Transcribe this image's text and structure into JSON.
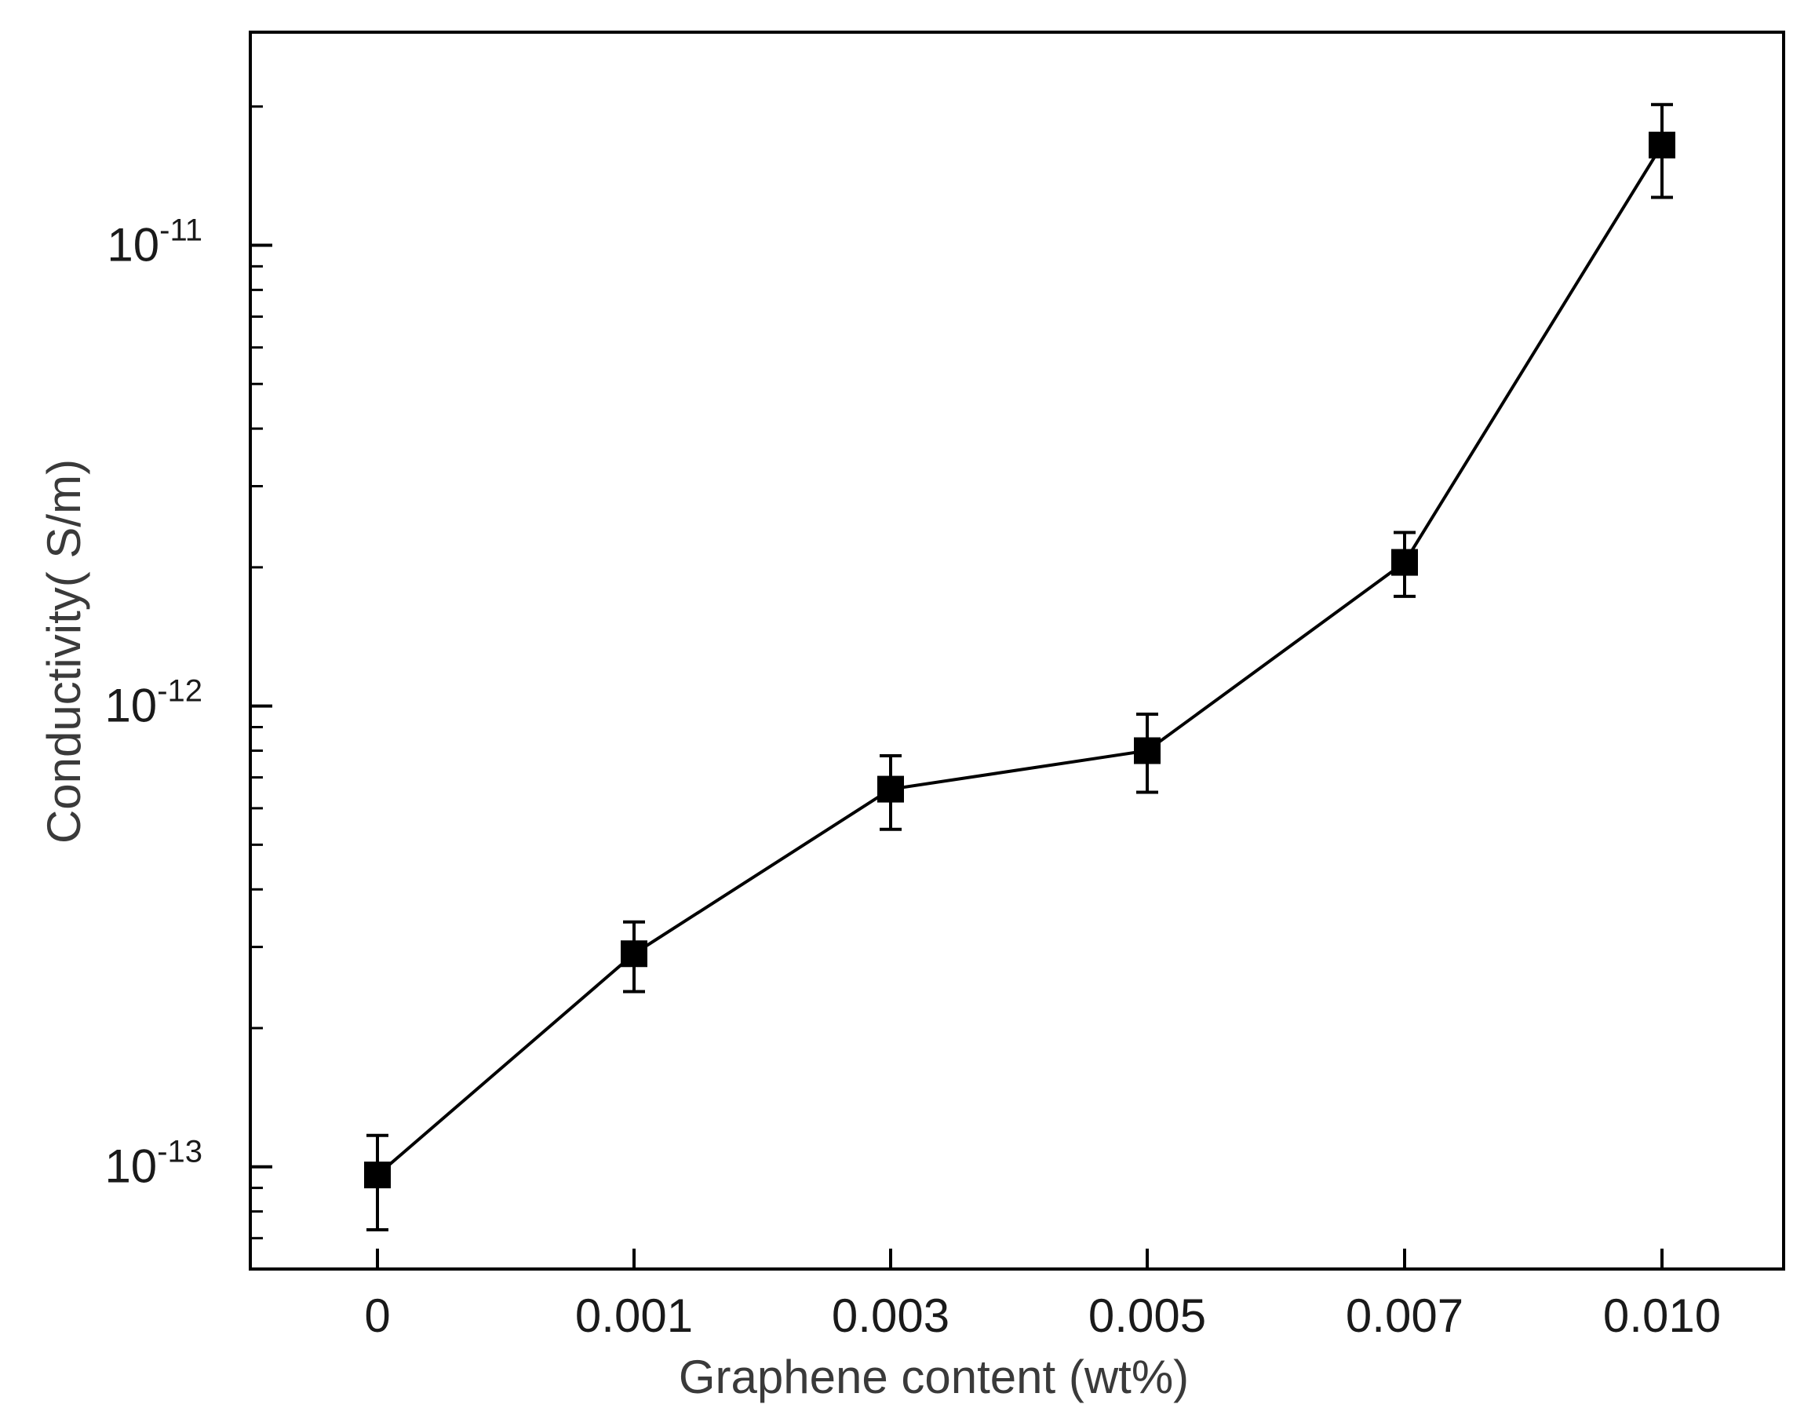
{
  "chart_data": {
    "type": "line",
    "xlabel": "Graphene content (wt%)",
    "ylabel": "Conductivity(  S/m)",
    "categories": [
      "0",
      "0.001",
      "0.003",
      "0.005",
      "0.007",
      "0.010"
    ],
    "y_scale": "log",
    "ylim": [
      6e-14,
      2.9e-11
    ],
    "y_ticks": [
      {
        "base": "10",
        "exp": "-13",
        "value": 1e-13
      },
      {
        "base": "10",
        "exp": "-12",
        "value": 1e-12
      },
      {
        "base": "10",
        "exp": "-11",
        "value": 1e-11
      }
    ],
    "series": [
      {
        "values": [
          9.6e-14,
          2.9e-13,
          6.6e-13,
          8e-13,
          2.05e-12,
          1.65e-11
        ],
        "err_low": [
          7.3e-14,
          2.4e-13,
          5.4e-13,
          6.5e-13,
          1.73e-12,
          1.27e-11
        ],
        "err_high": [
          1.17e-13,
          3.4e-13,
          7.8e-13,
          9.6e-13,
          2.38e-12,
          2.02e-11
        ],
        "marker": "square",
        "color": "#000000"
      }
    ],
    "grid": false,
    "legend": "none"
  }
}
